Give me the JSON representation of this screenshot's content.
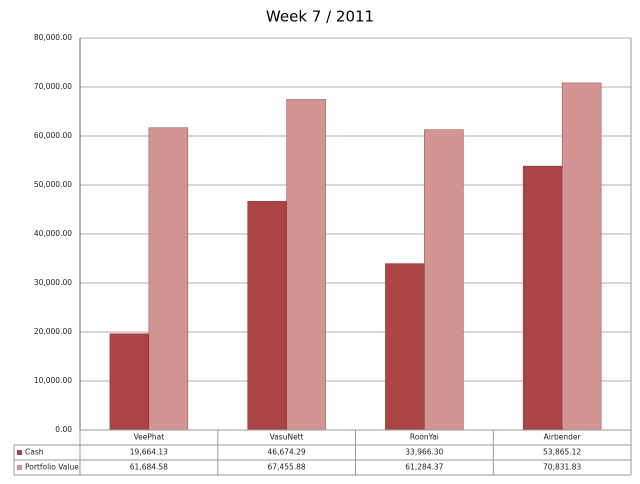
{
  "chart_data": {
    "type": "bar",
    "title": "Week 7 / 2011",
    "categories": [
      "VeePhat",
      "VasuNett",
      "RoonYai",
      "Airbender"
    ],
    "series": [
      {
        "name": "Cash",
        "color": "#ab4545",
        "values": [
          19664.13,
          46674.29,
          33966.3,
          53865.12
        ],
        "value_labels": [
          "19,664.13",
          "46,674.29",
          "33,966.30",
          "53,865.12"
        ]
      },
      {
        "name": "Portfolio Value",
        "color": "#d39494",
        "values": [
          61684.58,
          67455.88,
          61284.37,
          70831.83
        ],
        "value_labels": [
          "61,684.58",
          "67,455.88",
          "61,284.37",
          "70,831.83"
        ]
      }
    ],
    "ylim": [
      0,
      80000
    ],
    "yticks": [
      {
        "value": 0,
        "label": "0.00"
      },
      {
        "value": 10000,
        "label": "10,000.00"
      },
      {
        "value": 20000,
        "label": "20,000.00"
      },
      {
        "value": 30000,
        "label": "30,000.00"
      },
      {
        "value": 40000,
        "label": "40,000.00"
      },
      {
        "value": 50000,
        "label": "50,000.00"
      },
      {
        "value": 60000,
        "label": "60,000.00"
      },
      {
        "value": 70000,
        "label": "70,000.00"
      },
      {
        "value": 80000,
        "label": "80,000.00"
      }
    ],
    "grid": true
  }
}
